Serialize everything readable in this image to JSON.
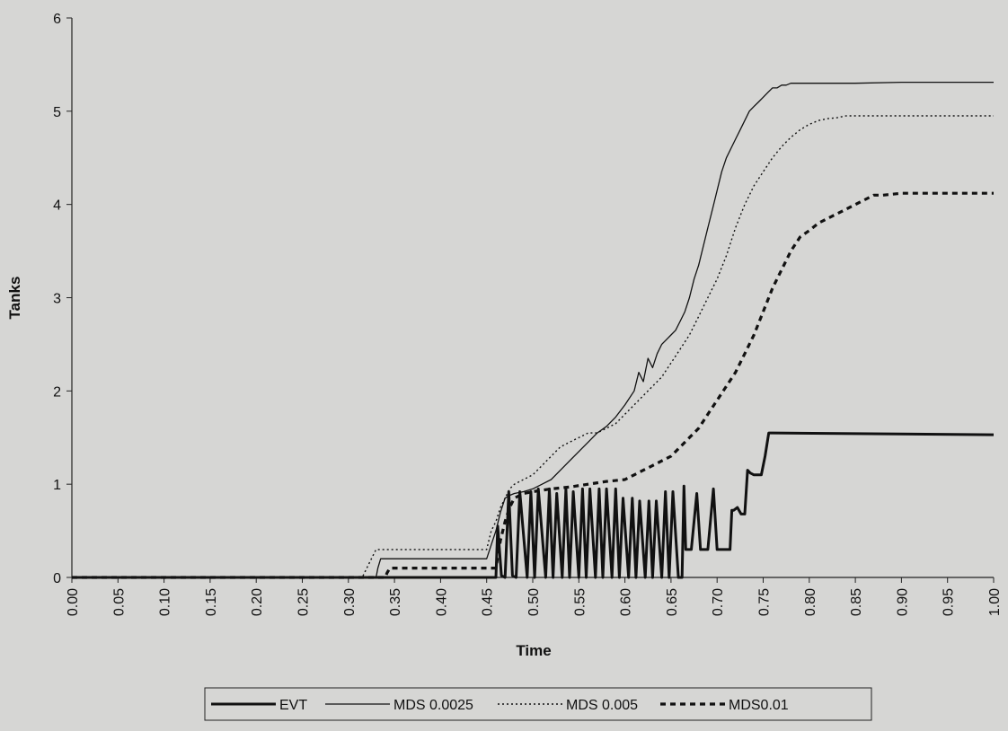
{
  "chart_data": {
    "type": "line",
    "xlabel": "Time",
    "ylabel": "Tanks",
    "xlim": [
      0,
      1
    ],
    "ylim": [
      0,
      6
    ],
    "x_ticks": [
      "0.00",
      "0.05",
      "0.10",
      "0.15",
      "0.20",
      "0.25",
      "0.30",
      "0.35",
      "0.40",
      "0.45",
      "0.50",
      "0.55",
      "0.60",
      "0.65",
      "0.70",
      "0.75",
      "0.80",
      "0.85",
      "0.90",
      "0.95",
      "1.00"
    ],
    "y_ticks": [
      "0",
      "1",
      "2",
      "3",
      "4",
      "5",
      "6"
    ],
    "grid": false,
    "legend_position": "bottom",
    "series": [
      {
        "name": "EVT",
        "style": "thick-solid",
        "color": "#111111",
        "x": [
          0,
          0.46,
          0.462,
          0.466,
          0.47,
          0.474,
          0.478,
          0.482,
          0.486,
          0.494,
          0.498,
          0.502,
          0.506,
          0.514,
          0.518,
          0.522,
          0.526,
          0.532,
          0.536,
          0.54,
          0.544,
          0.55,
          0.554,
          0.558,
          0.562,
          0.568,
          0.572,
          0.576,
          0.58,
          0.586,
          0.59,
          0.594,
          0.598,
          0.604,
          0.608,
          0.612,
          0.616,
          0.622,
          0.626,
          0.63,
          0.634,
          0.64,
          0.644,
          0.648,
          0.652,
          0.658,
          0.662,
          0.664,
          0.666,
          0.668,
          0.672,
          0.678,
          0.682,
          0.686,
          0.69,
          0.696,
          0.7,
          0.704,
          0.708,
          0.714,
          0.716,
          0.718,
          0.722,
          0.726,
          0.73,
          0.733,
          0.736,
          0.74,
          0.744,
          0.748,
          0.752,
          0.756,
          0.758,
          0.76,
          1.0
        ],
        "y": [
          0,
          0,
          0.55,
          0.02,
          0,
          0.92,
          0.02,
          0,
          0.92,
          0,
          0.92,
          0,
          0.95,
          0,
          0.95,
          0,
          0.9,
          0,
          0.95,
          0,
          0.92,
          0,
          0.95,
          0,
          0.95,
          0,
          0.95,
          0,
          0.95,
          0,
          0.95,
          0,
          0.85,
          0,
          0.85,
          0,
          0.82,
          0,
          0.82,
          0,
          0.82,
          0,
          0.92,
          0,
          0.92,
          0,
          0,
          0.98,
          0.3,
          0.3,
          0.3,
          0.9,
          0.3,
          0.3,
          0.3,
          0.95,
          0.3,
          0.3,
          0.3,
          0.3,
          0.72,
          0.72,
          0.75,
          0.68,
          0.68,
          1.15,
          1.12,
          1.1,
          1.1,
          1.1,
          1.3,
          1.55,
          1.55,
          1.55,
          1.53
        ]
      },
      {
        "name": "MDS 0.0025",
        "style": "thin-solid",
        "color": "#111111",
        "x": [
          0,
          0.33,
          0.332,
          0.335,
          0.45,
          0.455,
          0.46,
          0.465,
          0.47,
          0.475,
          0.48,
          0.49,
          0.5,
          0.51,
          0.52,
          0.53,
          0.54,
          0.55,
          0.56,
          0.57,
          0.58,
          0.59,
          0.6,
          0.61,
          0.615,
          0.62,
          0.625,
          0.63,
          0.635,
          0.64,
          0.645,
          0.65,
          0.655,
          0.66,
          0.665,
          0.67,
          0.675,
          0.68,
          0.685,
          0.69,
          0.695,
          0.7,
          0.705,
          0.71,
          0.715,
          0.72,
          0.725,
          0.73,
          0.735,
          0.74,
          0.745,
          0.75,
          0.755,
          0.76,
          0.765,
          0.77,
          0.775,
          0.78,
          0.79,
          0.8,
          0.81,
          0.85,
          0.9,
          1.0
        ],
        "y": [
          0,
          0,
          0.1,
          0.2,
          0.2,
          0.35,
          0.5,
          0.7,
          0.85,
          0.88,
          0.9,
          0.92,
          0.95,
          1.0,
          1.05,
          1.15,
          1.25,
          1.35,
          1.45,
          1.55,
          1.62,
          1.72,
          1.85,
          2.0,
          2.2,
          2.1,
          2.35,
          2.25,
          2.4,
          2.5,
          2.55,
          2.6,
          2.65,
          2.75,
          2.85,
          3.0,
          3.2,
          3.35,
          3.55,
          3.75,
          3.95,
          4.15,
          4.35,
          4.5,
          4.6,
          4.7,
          4.8,
          4.9,
          5.0,
          5.05,
          5.1,
          5.15,
          5.2,
          5.25,
          5.25,
          5.28,
          5.28,
          5.3,
          5.3,
          5.3,
          5.3,
          5.3,
          5.31,
          5.31
        ]
      },
      {
        "name": "MDS 0.005",
        "style": "fine-dotted",
        "color": "#111111",
        "x": [
          0,
          0.315,
          0.32,
          0.325,
          0.33,
          0.335,
          0.45,
          0.455,
          0.46,
          0.465,
          0.47,
          0.475,
          0.48,
          0.49,
          0.5,
          0.51,
          0.52,
          0.53,
          0.54,
          0.55,
          0.56,
          0.57,
          0.58,
          0.59,
          0.6,
          0.61,
          0.62,
          0.63,
          0.64,
          0.65,
          0.66,
          0.67,
          0.68,
          0.69,
          0.7,
          0.71,
          0.72,
          0.73,
          0.74,
          0.75,
          0.76,
          0.77,
          0.78,
          0.79,
          0.8,
          0.81,
          0.82,
          0.83,
          0.84,
          0.85,
          0.86,
          0.87,
          0.88,
          0.9,
          1.0
        ],
        "y": [
          0,
          0,
          0.1,
          0.2,
          0.3,
          0.3,
          0.3,
          0.5,
          0.6,
          0.75,
          0.85,
          0.95,
          1.0,
          1.05,
          1.1,
          1.2,
          1.3,
          1.4,
          1.45,
          1.5,
          1.55,
          1.55,
          1.6,
          1.65,
          1.75,
          1.85,
          1.95,
          2.05,
          2.15,
          2.3,
          2.45,
          2.6,
          2.8,
          3.0,
          3.2,
          3.45,
          3.75,
          4.0,
          4.2,
          4.35,
          4.5,
          4.62,
          4.72,
          4.8,
          4.86,
          4.9,
          4.92,
          4.93,
          4.95,
          4.95,
          4.95,
          4.95,
          4.95,
          4.95,
          4.95
        ]
      },
      {
        "name": "MDS0.01",
        "style": "thick-dashed",
        "color": "#111111",
        "x": [
          0,
          0.34,
          0.342,
          0.345,
          0.46,
          0.465,
          0.47,
          0.475,
          0.48,
          0.49,
          0.5,
          0.52,
          0.54,
          0.56,
          0.58,
          0.6,
          0.61,
          0.62,
          0.63,
          0.64,
          0.65,
          0.66,
          0.67,
          0.68,
          0.69,
          0.7,
          0.71,
          0.72,
          0.73,
          0.74,
          0.75,
          0.76,
          0.77,
          0.78,
          0.79,
          0.8,
          0.81,
          0.82,
          0.83,
          0.84,
          0.85,
          0.86,
          0.87,
          0.88,
          0.9,
          1.0
        ],
        "y": [
          0,
          0,
          0.05,
          0.1,
          0.1,
          0.4,
          0.6,
          0.75,
          0.85,
          0.9,
          0.92,
          0.95,
          0.97,
          1.0,
          1.03,
          1.05,
          1.1,
          1.15,
          1.2,
          1.25,
          1.3,
          1.4,
          1.5,
          1.6,
          1.75,
          1.9,
          2.05,
          2.2,
          2.4,
          2.6,
          2.85,
          3.1,
          3.3,
          3.5,
          3.65,
          3.72,
          3.8,
          3.85,
          3.9,
          3.95,
          4.0,
          4.05,
          4.1,
          4.1,
          4.12,
          4.12
        ]
      }
    ]
  }
}
